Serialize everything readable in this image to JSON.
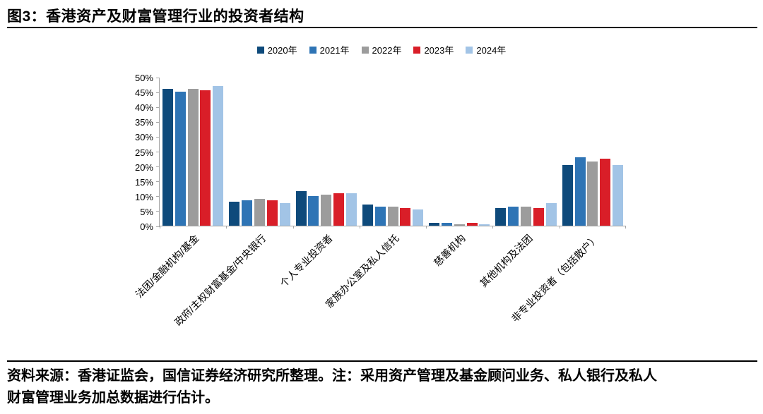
{
  "header": {
    "title": "图3：香港资产及财富管理行业的投资者结构"
  },
  "footer": {
    "lines": [
      "资料来源：香港证监会，国信证券经济研究所整理。注：采用资产管理及基金顾问业务、私人银行及私人",
      "财富管理业务加总数据进行估计。"
    ]
  },
  "colors": {
    "axis": "#a6a6a6",
    "text": "#000000",
    "rule": "#000000"
  },
  "chart_data": {
    "type": "bar",
    "title": "图3：香港资产及财富管理行业的投资者结构",
    "categories": [
      "法团/金融机构/基金",
      "政府/主权财富基金/中央银行",
      "个人专业投资者",
      "家族办公室及私人信托",
      "慈善机构",
      "其他机构及法团",
      "非专业投资者（包括散户）"
    ],
    "series": [
      {
        "name": "2020年",
        "color": "#0e4a7b",
        "values": [
          46,
          8,
          11.5,
          7,
          1,
          6,
          20.5
        ]
      },
      {
        "name": "2021年",
        "color": "#2e74b5",
        "values": [
          45,
          8.5,
          10,
          6.5,
          1,
          6.5,
          23
        ]
      },
      {
        "name": "2022年",
        "color": "#9c9c9c",
        "values": [
          46,
          9,
          10.5,
          6.5,
          0.5,
          6.5,
          21.5
        ]
      },
      {
        "name": "2023年",
        "color": "#d91e28",
        "values": [
          45.5,
          8.5,
          11,
          6,
          1,
          6,
          22.5
        ]
      },
      {
        "name": "2024年",
        "color": "#a2c4e6",
        "values": [
          47,
          7.5,
          11,
          5.5,
          0.5,
          7.5,
          20.5
        ]
      }
    ],
    "ylabel": "",
    "xlabel": "",
    "ylim": [
      0,
      50
    ],
    "ytick_step": 5,
    "ytick_suffix": "%",
    "legend_position": "top-center",
    "grid": false,
    "x_label_rotation_deg": -45
  }
}
